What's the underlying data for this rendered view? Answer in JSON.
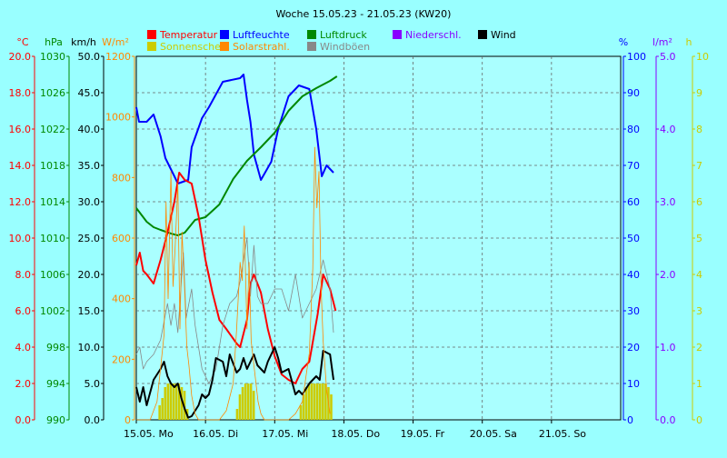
{
  "chart_data": {
    "type": "line",
    "title": "Woche 15.05.23 - 21.05.23 (KW20)",
    "x_labels": [
      "15.05. Mo",
      "16.05. Di",
      "17.05. Mi",
      "18.05. Do",
      "19.05. Fr",
      "20.05. Sa",
      "21.05. So"
    ],
    "legend": [
      {
        "label": "Temperatur",
        "color": "#ff0000"
      },
      {
        "label": "Luftfeuchte",
        "color": "#0000ff"
      },
      {
        "label": "Luftdruck",
        "color": "#008800"
      },
      {
        "label": "Niederschl.",
        "color": "#8800ff"
      },
      {
        "label": "Wind",
        "color": "#000000"
      },
      {
        "label": "Sonnenschein",
        "color": "#cccc00"
      },
      {
        "label": "Solarstrahl.",
        "color": "#ff8800"
      },
      {
        "label": "Windböen",
        "color": "#888888"
      }
    ],
    "axes": {
      "temp": {
        "unit": "°C",
        "color": "#ff0000",
        "min": 0,
        "max": 20,
        "step": 2,
        "decimals": 1
      },
      "press": {
        "unit": "hPa",
        "color": "#008800",
        "min": 990,
        "max": 1030,
        "step": 4,
        "decimals": 0
      },
      "wind": {
        "unit": "km/h",
        "color": "#000000",
        "min": 0,
        "max": 50,
        "step": 5,
        "decimals": 1
      },
      "solar": {
        "unit": "W/m²",
        "color": "#ff8800",
        "min": 0,
        "max": 1200,
        "step": 200,
        "decimals": 0
      },
      "hum": {
        "unit": "%",
        "color": "#0000ff",
        "min": 0,
        "max": 100,
        "step": 10,
        "decimals": 0
      },
      "precip": {
        "unit": "l/m²",
        "color": "#8800ff",
        "min": 0,
        "max": 5,
        "step": 1,
        "decimals": 1
      },
      "sun": {
        "unit": "h",
        "color": "#cccc00",
        "min": 0,
        "max": 10,
        "step": 1,
        "decimals": 0
      }
    },
    "x_range_days": [
      0,
      7
    ],
    "series": [
      {
        "name": "Luftfeuchte",
        "axis": "hum",
        "color": "#0000ff",
        "x": [
          0,
          0.04,
          0.15,
          0.25,
          0.35,
          0.42,
          0.55,
          0.6,
          0.75,
          0.8,
          0.95,
          1.05,
          1.25,
          1.5,
          1.55,
          1.6,
          1.65,
          1.7,
          1.8,
          1.95,
          2.05,
          2.2,
          2.35,
          2.5,
          2.6,
          2.68,
          2.75,
          2.85
        ],
        "y": [
          86,
          82,
          82,
          84,
          78,
          72,
          67,
          65,
          66,
          75,
          83,
          86,
          93,
          94,
          95,
          88,
          82,
          73,
          66,
          71,
          80,
          89,
          92,
          91,
          80,
          67,
          70,
          68
        ]
      },
      {
        "name": "Luftdruck",
        "axis": "press",
        "color": "#008800",
        "x": [
          0,
          0.15,
          0.25,
          0.35,
          0.5,
          0.6,
          0.7,
          0.85,
          1.0,
          1.2,
          1.4,
          1.6,
          1.8,
          2.0,
          2.2,
          2.4,
          2.6,
          2.8,
          2.9
        ],
        "y": [
          1013.3,
          1011.8,
          1011.2,
          1010.9,
          1010.5,
          1010.3,
          1010.6,
          1012.0,
          1012.3,
          1013.7,
          1016.5,
          1018.5,
          1020.0,
          1021.6,
          1024.0,
          1025.6,
          1026.5,
          1027.3,
          1027.8
        ]
      },
      {
        "name": "Temperatur",
        "axis": "temp",
        "color": "#ff0000",
        "x": [
          0,
          0.05,
          0.1,
          0.15,
          0.25,
          0.35,
          0.45,
          0.55,
          0.62,
          0.7,
          0.8,
          0.9,
          1.0,
          1.1,
          1.2,
          1.3,
          1.45,
          1.5,
          1.6,
          1.65,
          1.7,
          1.8,
          1.9,
          2.0,
          2.1,
          2.2,
          2.3,
          2.4,
          2.5,
          2.62,
          2.7,
          2.8,
          2.88
        ],
        "y": [
          8.5,
          9.2,
          8.2,
          8.0,
          7.5,
          8.8,
          10.3,
          12.0,
          13.6,
          13.2,
          13.0,
          11.2,
          8.8,
          7.0,
          5.5,
          5.0,
          4.2,
          4.0,
          5.5,
          7.5,
          8.0,
          7.0,
          5.0,
          3.5,
          2.5,
          2.2,
          2.0,
          2.8,
          3.2,
          5.8,
          8.0,
          7.2,
          6.0
        ]
      },
      {
        "name": "Windböen",
        "axis": "wind",
        "color": "#888888",
        "width": 0.8,
        "x": [
          0,
          0.05,
          0.1,
          0.15,
          0.25,
          0.35,
          0.45,
          0.5,
          0.55,
          0.6,
          0.68,
          0.72,
          0.8,
          0.85,
          0.95,
          1.05,
          1.15,
          1.25,
          1.35,
          1.45,
          1.5,
          1.6,
          1.65,
          1.7,
          1.75,
          1.8,
          1.9,
          2.0,
          2.1,
          2.2,
          2.3,
          2.4,
          2.5,
          2.6,
          2.7,
          2.8,
          2.85
        ],
        "y": [
          9,
          10,
          7,
          8,
          9,
          11,
          16,
          13,
          16,
          12,
          23,
          14,
          18,
          13,
          7,
          5,
          7,
          13,
          16,
          17,
          19,
          25,
          17,
          24,
          17,
          16,
          16,
          18,
          18,
          15,
          20,
          14,
          16,
          18,
          22,
          18,
          12
        ]
      },
      {
        "name": "Wind",
        "axis": "wind",
        "color": "#000000",
        "x": [
          0,
          0.05,
          0.1,
          0.15,
          0.25,
          0.35,
          0.4,
          0.45,
          0.5,
          0.55,
          0.6,
          0.65,
          0.7,
          0.75,
          0.8,
          0.9,
          0.95,
          1.0,
          1.05,
          1.1,
          1.15,
          1.25,
          1.3,
          1.35,
          1.45,
          1.5,
          1.55,
          1.6,
          1.7,
          1.75,
          1.8,
          1.85,
          1.9,
          2.0,
          2.05,
          2.1,
          2.2,
          2.3,
          2.35,
          2.4,
          2.5,
          2.6,
          2.65,
          2.7,
          2.8,
          2.85
        ],
        "y": [
          4.5,
          2.5,
          4.5,
          2.0,
          5.5,
          7.0,
          8.0,
          6.0,
          5.0,
          4.5,
          5.0,
          3.0,
          1.5,
          0.3,
          0.5,
          2.0,
          3.5,
          3.0,
          3.5,
          5.5,
          8.5,
          8.0,
          6.0,
          9.0,
          6.5,
          7.0,
          8.5,
          7.0,
          9.0,
          7.5,
          7.0,
          6.5,
          8.0,
          10.0,
          8.5,
          6.5,
          7.0,
          3.5,
          4.0,
          3.5,
          5.0,
          6.0,
          5.5,
          9.5,
          9.0,
          5.5
        ]
      },
      {
        "name": "Solarstrahl.",
        "axis": "solar",
        "color": "#ff8800",
        "width": 0.8,
        "x": [
          0,
          0.1,
          0.2,
          0.3,
          0.4,
          0.43,
          0.46,
          0.5,
          0.53,
          0.56,
          0.6,
          0.63,
          0.66,
          0.7,
          0.73,
          0.76,
          0.8,
          0.85,
          0.9,
          1.0,
          1.1,
          1.2,
          1.3,
          1.4,
          1.45,
          1.5,
          1.53,
          1.56,
          1.6,
          1.63,
          1.66,
          1.7,
          1.73,
          1.76,
          1.8,
          1.85,
          1.9,
          2.0,
          2.1,
          2.2,
          2.3,
          2.4,
          2.5,
          2.55,
          2.58,
          2.61,
          2.64,
          2.67,
          2.7,
          2.75,
          2.8
        ],
        "y": [
          0,
          0,
          0,
          60,
          280,
          720,
          400,
          820,
          440,
          560,
          780,
          300,
          620,
          420,
          240,
          180,
          80,
          20,
          0,
          0,
          0,
          0,
          30,
          120,
          300,
          520,
          460,
          640,
          300,
          520,
          260,
          180,
          120,
          60,
          20,
          0,
          0,
          0,
          0,
          0,
          20,
          60,
          220,
          500,
          900,
          700,
          820,
          440,
          260,
          100,
          20
        ]
      },
      {
        "name": "Sonnenschein",
        "axis": "sun",
        "color": "#cccc00",
        "type": "bars",
        "x": [
          0.32,
          0.36,
          0.4,
          0.44,
          0.48,
          0.52,
          0.56,
          0.6,
          0.64,
          0.68,
          0.72,
          1.44,
          1.48,
          1.52,
          1.56,
          1.6,
          1.64,
          1.68,
          2.36,
          2.4,
          2.44,
          2.48,
          2.52,
          2.56,
          2.6,
          2.64,
          2.68,
          2.72,
          2.76,
          2.8
        ],
        "y": [
          0.4,
          0.6,
          0.9,
          1.0,
          1.0,
          1.0,
          1.0,
          1.0,
          0.9,
          0.8,
          0.3,
          0.3,
          0.7,
          0.9,
          1.0,
          1.0,
          1.0,
          0.8,
          0.4,
          0.7,
          0.9,
          1.0,
          1.0,
          1.0,
          1.0,
          1.0,
          1.0,
          1.0,
          0.9,
          0.7
        ]
      }
    ]
  }
}
